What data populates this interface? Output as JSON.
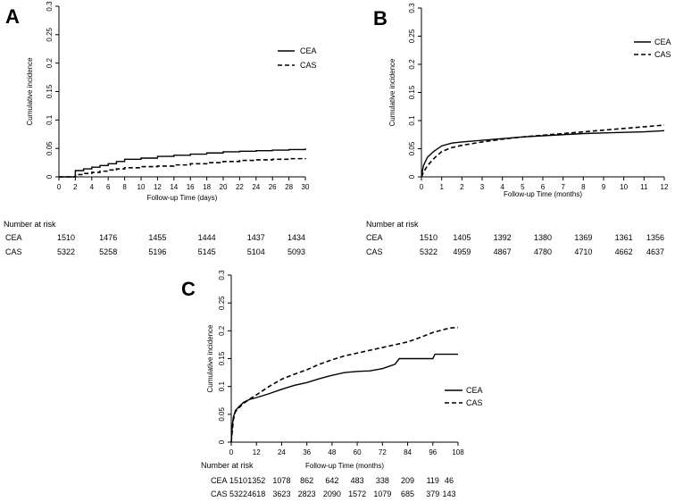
{
  "colors": {
    "line": "#000000",
    "background": "#ffffff"
  },
  "chart_data": [
    {
      "panel_label": "A",
      "type": "line",
      "title": "",
      "xlabel": "Follow-up Time (days)",
      "ylabel": "Cumulative incidence",
      "xlim": [
        0,
        30
      ],
      "ylim": [
        0,
        0.3
      ],
      "x_ticks": [
        "0",
        "2",
        "4",
        "6",
        "8",
        "10",
        "12",
        "14",
        "16",
        "18",
        "20",
        "22",
        "24",
        "26",
        "28",
        "30"
      ],
      "y_ticks": [
        "0",
        "0.05",
        "0.1",
        "0.15",
        "0.2",
        "0.25",
        "0.3"
      ],
      "legend_position": "top-right",
      "series": [
        {
          "name": "CEA",
          "style": "solid",
          "step": true,
          "x": [
            0,
            2,
            3,
            4,
            5,
            6,
            7,
            8,
            10,
            12,
            14,
            16,
            18,
            20,
            22,
            24,
            26,
            28,
            30
          ],
          "y": [
            0,
            0.011,
            0.014,
            0.017,
            0.02,
            0.023,
            0.027,
            0.031,
            0.033,
            0.036,
            0.038,
            0.04,
            0.042,
            0.044,
            0.045,
            0.046,
            0.047,
            0.048,
            0.05
          ]
        },
        {
          "name": "CAS",
          "style": "dashed",
          "step": true,
          "x": [
            0,
            2,
            3,
            4,
            5,
            6,
            7,
            8,
            10,
            12,
            14,
            16,
            18,
            20,
            22,
            24,
            26,
            28,
            30
          ],
          "y": [
            0,
            0.004,
            0.006,
            0.008,
            0.01,
            0.012,
            0.014,
            0.016,
            0.018,
            0.019,
            0.021,
            0.023,
            0.025,
            0.027,
            0.029,
            0.03,
            0.031,
            0.032,
            0.033
          ]
        }
      ],
      "risk_table": {
        "heading": "Number at risk",
        "rows": [
          {
            "label": "CEA",
            "values": [
              "1510",
              "1476",
              "1455",
              "1444",
              "1437",
              "1434"
            ]
          },
          {
            "label": "CAS",
            "values": [
              "5322",
              "5258",
              "5196",
              "5145",
              "5104",
              "5093"
            ]
          }
        ],
        "times": [
          0,
          6,
          12,
          18,
          24,
          30
        ]
      }
    },
    {
      "panel_label": "B",
      "type": "line",
      "title": "",
      "xlabel": "Follow-up Time (months)",
      "ylabel": "Cumulative incidence",
      "xlim": [
        0,
        12
      ],
      "ylim": [
        0,
        0.3
      ],
      "x_ticks": [
        "0",
        "1",
        "2",
        "3",
        "4",
        "5",
        "6",
        "7",
        "8",
        "9",
        "10",
        "11",
        "12"
      ],
      "y_ticks": [
        "0",
        "0.05",
        "0.1",
        "0.15",
        "0.2",
        "0.25",
        "0.3"
      ],
      "legend_position": "top-right",
      "series": [
        {
          "name": "CEA",
          "style": "solid",
          "step": false,
          "x": [
            0,
            0.1,
            0.3,
            0.6,
            1,
            1.5,
            2,
            3,
            4,
            5,
            6,
            7,
            8,
            9,
            10,
            11,
            12
          ],
          "y": [
            0,
            0.02,
            0.035,
            0.045,
            0.055,
            0.06,
            0.062,
            0.065,
            0.068,
            0.071,
            0.073,
            0.075,
            0.077,
            0.078,
            0.079,
            0.08,
            0.082
          ]
        },
        {
          "name": "CAS",
          "style": "dashed",
          "step": false,
          "x": [
            0,
            0.1,
            0.3,
            0.6,
            1,
            1.5,
            2,
            3,
            4,
            5,
            6,
            7,
            8,
            9,
            10,
            11,
            12
          ],
          "y": [
            0,
            0.008,
            0.02,
            0.032,
            0.045,
            0.052,
            0.056,
            0.062,
            0.067,
            0.071,
            0.074,
            0.077,
            0.08,
            0.083,
            0.086,
            0.089,
            0.092
          ]
        }
      ],
      "risk_table": {
        "heading": "Number at risk",
        "rows": [
          {
            "label": "CEA",
            "values": [
              "1510",
              "1405",
              "1392",
              "1380",
              "1369",
              "1361",
              "1356"
            ]
          },
          {
            "label": "CAS",
            "values": [
              "5322",
              "4959",
              "4867",
              "4780",
              "4710",
              "4662",
              "4637"
            ]
          }
        ],
        "times": [
          0,
          2,
          4,
          6,
          8,
          10,
          12
        ]
      }
    },
    {
      "panel_label": "C",
      "type": "line",
      "title": "",
      "xlabel": "Follow-up Time (months)",
      "ylabel": "Cumulative incidence",
      "xlim": [
        0,
        108
      ],
      "ylim": [
        0,
        0.3
      ],
      "x_ticks": [
        "0",
        "12",
        "24",
        "36",
        "48",
        "60",
        "72",
        "84",
        "96",
        "108"
      ],
      "y_ticks": [
        "0",
        "0.05",
        "0.1",
        "0.15",
        "0.2",
        "0.25",
        "0.3"
      ],
      "legend_position": "right",
      "series": [
        {
          "name": "CEA",
          "style": "solid",
          "step": false,
          "x": [
            0,
            0.5,
            1,
            2,
            4,
            6,
            9,
            12,
            18,
            24,
            30,
            36,
            42,
            48,
            54,
            60,
            66,
            72,
            78,
            80,
            84,
            90,
            96,
            97,
            108
          ],
          "y": [
            0,
            0.03,
            0.045,
            0.057,
            0.065,
            0.072,
            0.077,
            0.08,
            0.087,
            0.095,
            0.102,
            0.107,
            0.114,
            0.12,
            0.125,
            0.127,
            0.128,
            0.132,
            0.14,
            0.15,
            0.15,
            0.15,
            0.15,
            0.158,
            0.158
          ]
        },
        {
          "name": "CAS",
          "style": "dashed",
          "step": false,
          "x": [
            0,
            0.5,
            1,
            2,
            4,
            6,
            9,
            12,
            18,
            24,
            30,
            36,
            42,
            48,
            54,
            60,
            66,
            72,
            78,
            84,
            90,
            96,
            100,
            104,
            108
          ],
          "y": [
            0,
            0.02,
            0.04,
            0.055,
            0.063,
            0.07,
            0.078,
            0.085,
            0.1,
            0.113,
            0.122,
            0.13,
            0.14,
            0.148,
            0.155,
            0.16,
            0.165,
            0.17,
            0.175,
            0.18,
            0.188,
            0.197,
            0.201,
            0.205,
            0.206
          ]
        }
      ],
      "risk_table": {
        "heading": "Number at risk",
        "rows": [
          {
            "label": "CEA",
            "values": [
              "1510",
              "1352",
              "1078",
              "862",
              "642",
              "483",
              "338",
              "209",
              "119",
              "46"
            ]
          },
          {
            "label": "CAS",
            "values": [
              "5322",
              "4618",
              "3623",
              "2823",
              "2090",
              "1572",
              "1079",
              "685",
              "379",
              "143"
            ]
          }
        ],
        "times": [
          0,
          12,
          24,
          36,
          48,
          60,
          72,
          84,
          96,
          108
        ]
      }
    }
  ]
}
